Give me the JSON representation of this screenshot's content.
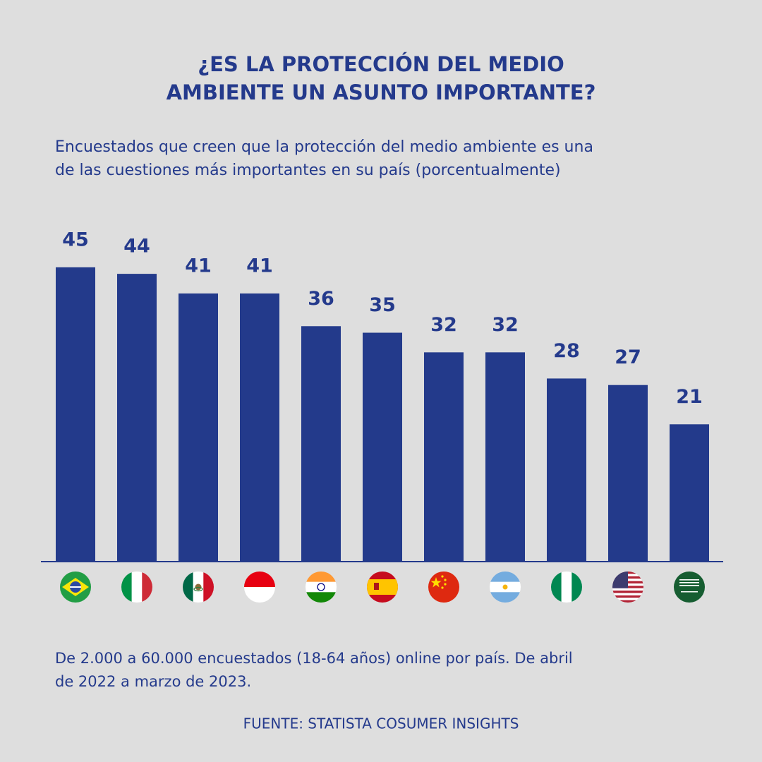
{
  "chart_data": {
    "type": "bar",
    "title": [
      "¿ES LA PROTECCIÓN DEL MEDIO",
      "AMBIENTE UN ASUNTO IMPORTANTE?"
    ],
    "subtitle": [
      "Encuestados que creen que la protección del medio ambiente es una",
      "de las cuestiones más importantes en su país (porcentualmente)"
    ],
    "categories": [
      null,
      null,
      null,
      null,
      null,
      null,
      null,
      null,
      null,
      null,
      null
    ],
    "values": [
      45,
      44,
      41,
      41,
      36,
      35,
      32,
      32,
      28,
      27,
      21
    ],
    "color": "#233a8b",
    "note": [
      "De 2.000 a 60.000 encuestados (18-64 años) online por país. De abril",
      "de 2022 a marzo de 2023."
    ],
    "source": "FUENTE: STATISTA COSUMER INSIGHTS"
  }
}
